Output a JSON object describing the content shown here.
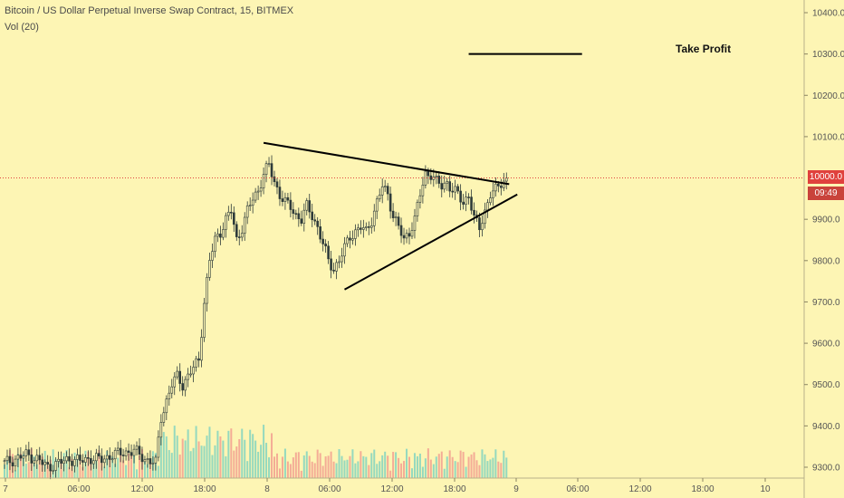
{
  "chart_title": "Bitcoin / US Dollar Perpetual Inverse Swap Contract, 15, BITMEX",
  "volume_label": "Vol (20)",
  "take_profit_label": "Take Profit",
  "last_price_badge": "10000.0",
  "countdown_badge": "09:49",
  "colors": {
    "background": "#fdf5b4",
    "up_candle": "#2e3b3a",
    "down_candle": "#2e3b3a",
    "vol_up": "#7bd2c0",
    "vol_down": "#f19a8e",
    "price_line": "#e0413d",
    "drawing": "#000000",
    "axis_text": "#555555"
  },
  "chart_data": {
    "type": "candlestick",
    "title": "Bitcoin / US Dollar Perpetual Inverse Swap Contract, 15, BITMEX",
    "interval": "15",
    "exchange": "BITMEX",
    "ylim": [
      9280,
      10440
    ],
    "y_ticks": [
      "10400.0",
      "10300.0",
      "10200.0",
      "10100.0",
      "9900.0",
      "9800.0",
      "9700.0",
      "9600.0",
      "9500.0",
      "9400.0",
      "9300.0"
    ],
    "x_ticks": [
      "7",
      "06:00",
      "12:00",
      "18:00",
      "8",
      "06:00",
      "12:00",
      "18:00",
      "9",
      "06:00",
      "12:00",
      "18:00",
      "10"
    ],
    "last_price": 10000.0,
    "price_path": [
      [
        0,
        9310
      ],
      [
        4,
        9320
      ],
      [
        8,
        9330
      ],
      [
        12,
        9320
      ],
      [
        16,
        9300
      ],
      [
        20,
        9310
      ],
      [
        24,
        9320
      ],
      [
        28,
        9315
      ],
      [
        32,
        9322
      ],
      [
        36,
        9318
      ],
      [
        40,
        9330
      ],
      [
        44,
        9335
      ],
      [
        48,
        9340
      ],
      [
        52,
        9320
      ],
      [
        56,
        9310
      ],
      [
        58,
        9420
      ],
      [
        60,
        9460
      ],
      [
        62,
        9500
      ],
      [
        64,
        9520
      ],
      [
        66,
        9500
      ],
      [
        68,
        9520
      ],
      [
        70,
        9540
      ],
      [
        72,
        9560
      ],
      [
        74,
        9700
      ],
      [
        76,
        9800
      ],
      [
        78,
        9850
      ],
      [
        80,
        9870
      ],
      [
        82,
        9900
      ],
      [
        84,
        9920
      ],
      [
        86,
        9850
      ],
      [
        88,
        9880
      ],
      [
        90,
        9920
      ],
      [
        92,
        9950
      ],
      [
        94,
        9970
      ],
      [
        96,
        10010
      ],
      [
        98,
        10030
      ],
      [
        100,
        9990
      ],
      [
        102,
        9960
      ],
      [
        104,
        9940
      ],
      [
        106,
        9930
      ],
      [
        108,
        9910
      ],
      [
        110,
        9900
      ],
      [
        112,
        9930
      ],
      [
        114,
        9910
      ],
      [
        116,
        9880
      ],
      [
        118,
        9840
      ],
      [
        120,
        9800
      ],
      [
        122,
        9780
      ],
      [
        124,
        9800
      ],
      [
        126,
        9830
      ],
      [
        128,
        9860
      ],
      [
        130,
        9870
      ],
      [
        132,
        9880
      ],
      [
        134,
        9870
      ],
      [
        136,
        9900
      ],
      [
        138,
        9940
      ],
      [
        140,
        9980
      ],
      [
        142,
        9960
      ],
      [
        144,
        9910
      ],
      [
        146,
        9880
      ],
      [
        148,
        9850
      ],
      [
        150,
        9870
      ],
      [
        152,
        9900
      ],
      [
        154,
        9960
      ],
      [
        156,
        10010
      ],
      [
        158,
        10010
      ],
      [
        160,
        9990
      ],
      [
        162,
        9980
      ],
      [
        164,
        9990
      ],
      [
        166,
        9970
      ],
      [
        168,
        9960
      ],
      [
        170,
        9940
      ],
      [
        172,
        9960
      ],
      [
        174,
        9900
      ],
      [
        176,
        9880
      ],
      [
        178,
        9920
      ],
      [
        180,
        9960
      ],
      [
        182,
        9970
      ],
      [
        184,
        9990
      ],
      [
        186,
        10000
      ]
    ],
    "drawings": [
      {
        "name": "triangle-upper-line",
        "points": [
          [
            96,
            10085
          ],
          [
            187,
            9985
          ]
        ]
      },
      {
        "name": "triangle-lower-line",
        "points": [
          [
            126,
            9730
          ],
          [
            190,
            9960
          ]
        ]
      },
      {
        "name": "take-profit-line",
        "points": [
          [
            172,
            10300
          ],
          [
            214,
            10300
          ]
        ],
        "label": "Take Profit"
      }
    ],
    "axes": {
      "grid": false,
      "y_axis": "right",
      "scale": "linear"
    }
  }
}
